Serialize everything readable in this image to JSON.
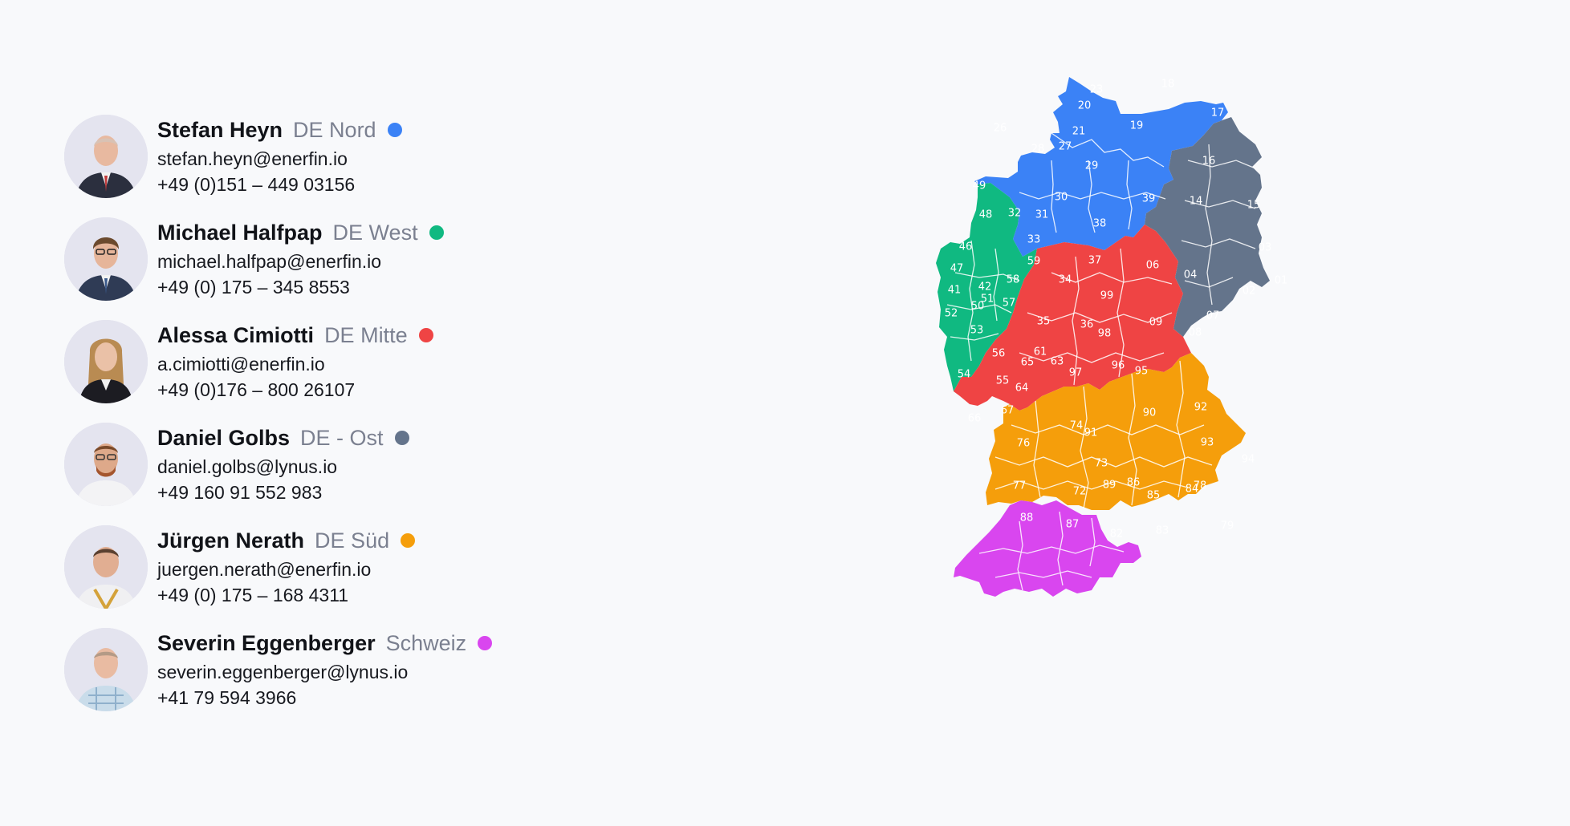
{
  "contacts": [
    {
      "name": "Stefan Heyn",
      "region": "DE Nord",
      "email": "stefan.heyn@enerfin.io",
      "phone": "+49 (0)151 – 449 03156",
      "color": "#3b82f6",
      "avatar_icon": "person-photo-icon"
    },
    {
      "name": "Michael Halfpap",
      "region": "DE West",
      "email": "michael.halfpap@enerfin.io",
      "phone": "+49 (0) 175 – 345 8553",
      "color": "#10b981",
      "avatar_icon": "person-photo-icon"
    },
    {
      "name": "Alessa Cimiotti",
      "region": "DE Mitte",
      "email": "a.cimiotti@enerfin.io",
      "phone": "+49 (0)176 – 800 26107",
      "color": "#ef4444",
      "avatar_icon": "person-photo-icon"
    },
    {
      "name": "Daniel Golbs",
      "region": "DE - Ost",
      "email": "daniel.golbs@lynus.io",
      "phone": "+49 160 91 552 983",
      "color": "#64748b",
      "avatar_icon": "person-photo-icon"
    },
    {
      "name": "Jürgen Nerath",
      "region": "DE Süd",
      "email": "juergen.nerath@enerfin.io",
      "phone": "+49 (0) 175 – 168 4311",
      "color": "#f59e0b",
      "avatar_icon": "person-photo-icon"
    },
    {
      "name": "Severin Eggenberger",
      "region": "Schweiz",
      "email": "severin.eggenberger@lynus.io",
      "phone": "+41 79 594 3966",
      "color": "#d946ef",
      "avatar_icon": "person-photo-icon"
    }
  ],
  "map": {
    "nord_color": "#3b82f6",
    "west_color": "#10b981",
    "mitte_color": "#ef4444",
    "ost_color": "#64748b",
    "sued_color": "#f59e0b",
    "schweiz_color": "#d946ef",
    "labels": {
      "nord": [
        "24",
        "25",
        "23",
        "18",
        "20",
        "26",
        "21",
        "19",
        "28",
        "27",
        "29",
        "30",
        "31",
        "39",
        "38"
      ],
      "west": [
        "49",
        "48",
        "32",
        "33",
        "46",
        "59",
        "47",
        "42",
        "58",
        "41",
        "50",
        "51",
        "57",
        "52",
        "53",
        "56",
        "54"
      ],
      "mitte": [
        "37",
        "34",
        "99",
        "35",
        "36",
        "98",
        "65",
        "61",
        "63",
        "97",
        "96",
        "95",
        "55",
        "64",
        "66",
        "67"
      ],
      "ost": [
        "17",
        "16",
        "14",
        "15",
        "06",
        "04",
        "03",
        "01",
        "02",
        "07",
        "09",
        "08"
      ],
      "sued": [
        "90",
        "92",
        "74",
        "91",
        "76",
        "93",
        "73",
        "94",
        "77",
        "72",
        "89",
        "86",
        "85",
        "84",
        "78",
        "88",
        "87",
        "82",
        "83",
        "79"
      ]
    }
  }
}
